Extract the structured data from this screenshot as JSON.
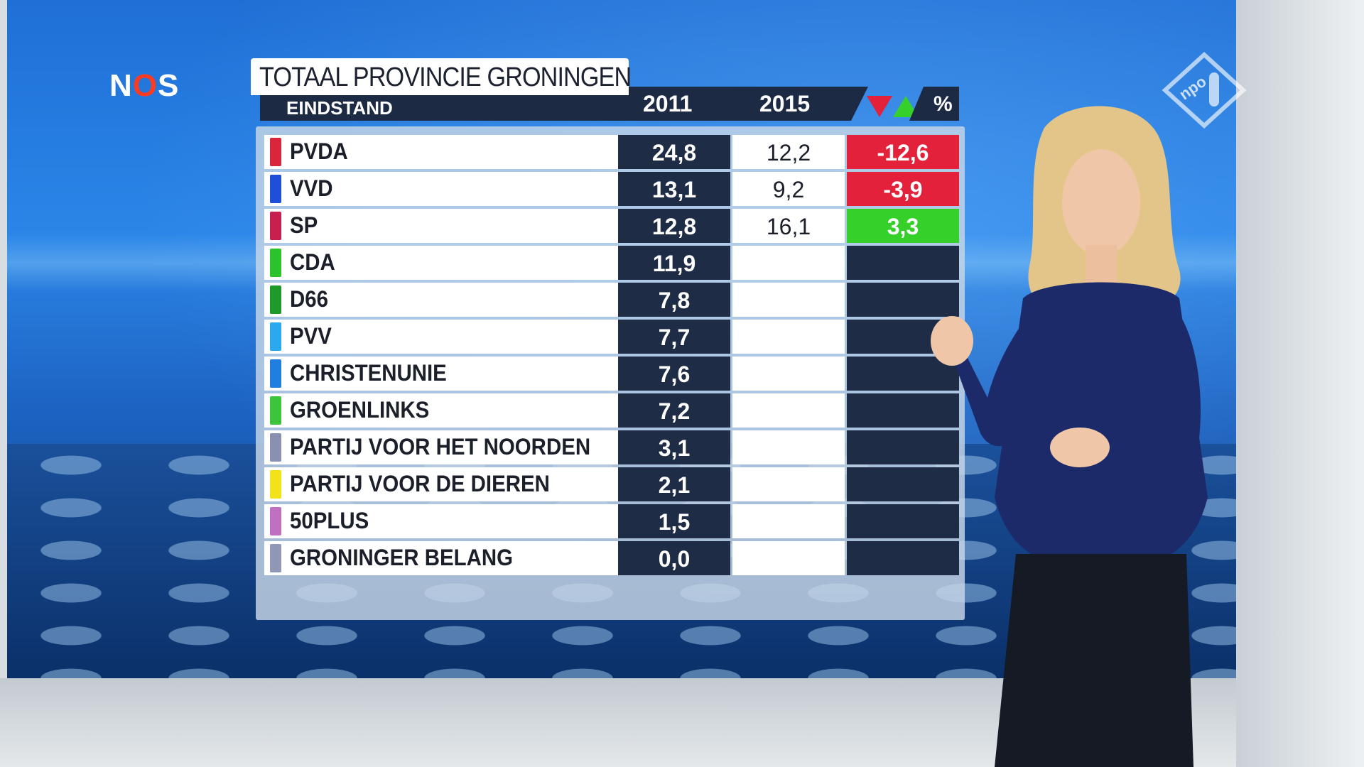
{
  "broadcaster_logo": "NOS",
  "channel_logo": "npo 1",
  "board": {
    "title": "TOTAAL PROVINCIE GRONINGEN",
    "subtitle": "EINDSTAND",
    "year_a": "2011",
    "year_b": "2015",
    "pct_header": "%",
    "colors": {
      "negative": "#e4213a",
      "positive": "#35d12a",
      "dark": "#1e2c45"
    },
    "rows": [
      {
        "party": "PVDA",
        "color": "#d9263a",
        "v2011": "24,8",
        "v2015": "12,2",
        "diff": "-12,6",
        "trend": "neg"
      },
      {
        "party": "VVD",
        "color": "#1f4ed8",
        "v2011": "13,1",
        "v2015": "9,2",
        "diff": "-3,9",
        "trend": "neg"
      },
      {
        "party": "SP",
        "color": "#c8204e",
        "v2011": "12,8",
        "v2015": "16,1",
        "diff": "3,3",
        "trend": "pos"
      },
      {
        "party": "CDA",
        "color": "#2cc22c",
        "v2011": "11,9",
        "v2015": "",
        "diff": "",
        "trend": "none"
      },
      {
        "party": "D66",
        "color": "#1e9a2a",
        "v2011": "7,8",
        "v2015": "",
        "diff": "",
        "trend": "none"
      },
      {
        "party": "PVV",
        "color": "#2aa8f0",
        "v2011": "7,7",
        "v2015": "",
        "diff": "",
        "trend": "none"
      },
      {
        "party": "CHRISTENUNIE",
        "color": "#1f7ee0",
        "v2011": "7,6",
        "v2015": "",
        "diff": "",
        "trend": "none"
      },
      {
        "party": "GROENLINKS",
        "color": "#3cc43a",
        "v2011": "7,2",
        "v2015": "",
        "diff": "",
        "trend": "none"
      },
      {
        "party": "PARTIJ VOOR HET NOORDEN",
        "color": "#8a91b0",
        "v2011": "3,1",
        "v2015": "",
        "diff": "",
        "trend": "none"
      },
      {
        "party": "PARTIJ VOOR DE DIEREN",
        "color": "#f2e21a",
        "v2011": "2,1",
        "v2015": "",
        "diff": "",
        "trend": "none"
      },
      {
        "party": "50PLUS",
        "color": "#c070c0",
        "v2011": "1,5",
        "v2015": "",
        "diff": "",
        "trend": "none"
      },
      {
        "party": "GRONINGER BELANG",
        "color": "#9097b4",
        "v2011": "0,0",
        "v2015": "",
        "diff": "",
        "trend": "none"
      }
    ]
  }
}
